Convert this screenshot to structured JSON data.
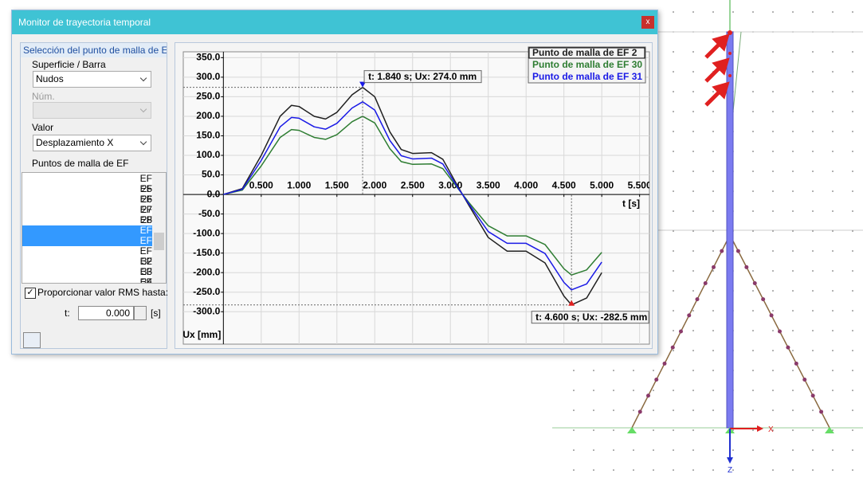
{
  "dialog": {
    "title": "Monitor de trayectoria temporal",
    "close": "x"
  },
  "selection": {
    "group_title": "Selección del punto de malla de EF",
    "surface_label": "Superficie / Barra",
    "surface_value": "Nudos",
    "num_label": "Núm.",
    "value_label": "Valor",
    "value_value": "Desplazamiento X",
    "points_label": "Puntos de malla de EF",
    "points": [
      "EF 25",
      "EF 26",
      "EF 27",
      "EF 28",
      "EF 29",
      "EF 30",
      "EF 31",
      "EF 32",
      "EF 33",
      "EF 34",
      "EF 35"
    ],
    "selected_points": [
      "EF 30",
      "EF 31"
    ]
  },
  "rms": {
    "label": "Proporcionar valor RMS hasta:",
    "checked": true,
    "t_label": "t:",
    "t_value": "0.000",
    "unit": "[s]"
  },
  "chart_data": {
    "type": "line",
    "x_label": "t [s]",
    "y_label": "Ux [mm]",
    "x": [
      0,
      0.25,
      0.5,
      0.75,
      0.9,
      1.0,
      1.2,
      1.35,
      1.5,
      1.7,
      1.84,
      2.0,
      2.2,
      2.35,
      2.5,
      2.75,
      2.9,
      3.1,
      3.25,
      3.5,
      3.75,
      4.0,
      4.25,
      4.5,
      4.6,
      4.8,
      5.0
    ],
    "series": [
      {
        "name": "Punto de malla de EF 2",
        "color": "#202020",
        "values": [
          0,
          15,
          100,
          200,
          228,
          225,
          200,
          193,
          210,
          255,
          274,
          250,
          160,
          115,
          105,
          107,
          90,
          20,
          -30,
          -110,
          -145,
          -145,
          -175,
          -260,
          -282.5,
          -265,
          -200
        ]
      },
      {
        "name": "Punto de malla de EF 30",
        "color": "#2e7d32",
        "values": [
          0,
          11,
          73,
          146,
          166,
          164,
          146,
          141,
          153,
          186,
          200,
          183,
          117,
          84,
          77,
          78,
          66,
          15,
          -22,
          -80,
          -106,
          -106,
          -128,
          -190,
          -206,
          -193,
          -148
        ]
      },
      {
        "name": "Punto de malla de EF 31",
        "color": "#1a1ae6",
        "values": [
          0,
          13,
          87,
          173,
          197,
          195,
          173,
          167,
          182,
          221,
          237,
          216,
          138,
          99,
          91,
          93,
          78,
          17,
          -26,
          -95,
          -125,
          -125,
          -151,
          -225,
          -244,
          -229,
          -173
        ]
      }
    ],
    "xlim": [
      -0.53,
      5.63
    ],
    "ylim": [
      -383,
      365
    ],
    "xticks": [
      {
        "value": 0.5,
        "label": "0.500"
      },
      {
        "value": 1,
        "label": "1.000"
      },
      {
        "value": 1.5,
        "label": "1.500"
      },
      {
        "value": 2,
        "label": "2.000"
      },
      {
        "value": 2.5,
        "label": "2.500"
      },
      {
        "value": 3,
        "label": "3.000"
      },
      {
        "value": 3.5,
        "label": "3.500"
      },
      {
        "value": 4,
        "label": "4.000"
      },
      {
        "value": 4.5,
        "label": "4.500"
      },
      {
        "value": 5,
        "label": "5.000"
      },
      {
        "value": 5.5,
        "label": "5.500"
      }
    ],
    "yticks": [
      {
        "value": 350,
        "label": "350.0"
      },
      {
        "value": 300,
        "label": "300.0"
      },
      {
        "value": 250,
        "label": "250.0"
      },
      {
        "value": 200,
        "label": "200.0"
      },
      {
        "value": 150,
        "label": "150.0"
      },
      {
        "value": 100,
        "label": "100.0"
      },
      {
        "value": 50,
        "label": "50.0"
      },
      {
        "value": 0,
        "label": "0.0"
      },
      {
        "value": -50,
        "label": "-50.0"
      },
      {
        "value": -100,
        "label": "-100.0"
      },
      {
        "value": -150,
        "label": "-150.0"
      },
      {
        "value": -200,
        "label": "-200.0"
      },
      {
        "value": -250,
        "label": "-250.0"
      },
      {
        "value": -300,
        "label": "-300.0"
      }
    ],
    "grid": true,
    "legend": "top-right",
    "annotations": [
      {
        "text": "t: 1.840 s; Ux: 274.0 mm",
        "x": 1.84,
        "y": 274,
        "color": "#1a1ae6"
      },
      {
        "text": "t: 4.600 s; Ux: -282.5 mm",
        "x": 4.6,
        "y": -282.5,
        "color": "#e02020"
      }
    ]
  },
  "view": {
    "x_axis": "X",
    "z_axis": "Z"
  }
}
